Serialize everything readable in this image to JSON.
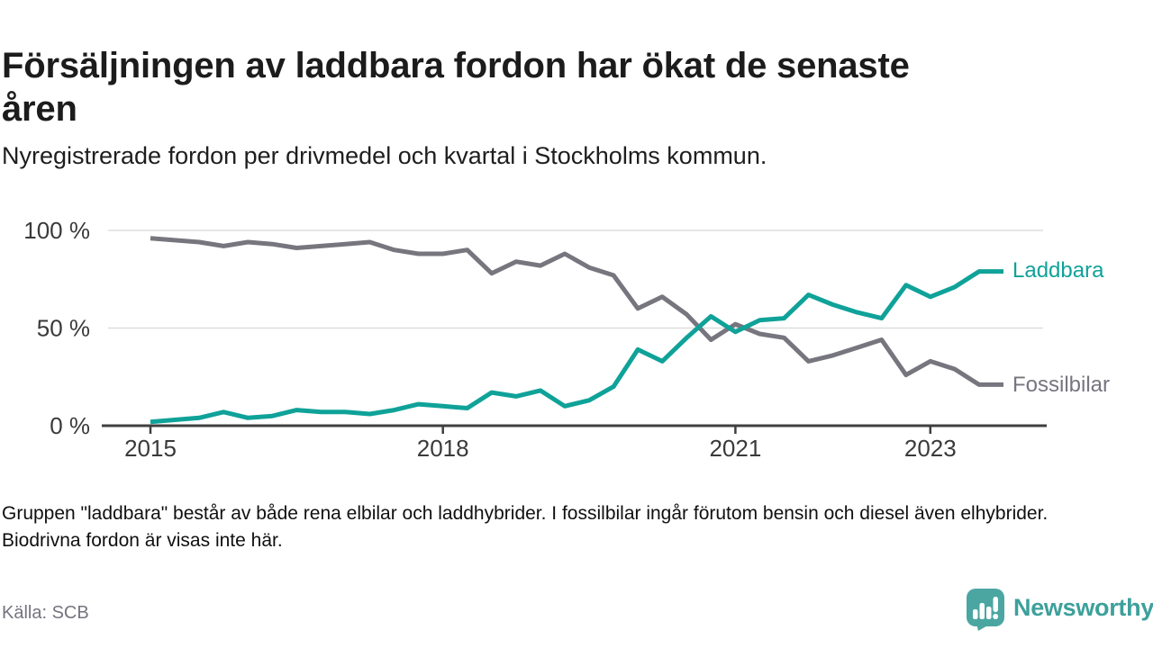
{
  "header": {
    "title": "Försäljningen av laddbara fordon har ökat de senaste åren",
    "subtitle": "Nyregistrerade fordon per drivmedel och kvartal i Stockholms kommun."
  },
  "chart_data": {
    "type": "line",
    "x_unit": "quarter",
    "x": [
      "2015 Q1",
      "2015 Q2",
      "2015 Q3",
      "2015 Q4",
      "2016 Q1",
      "2016 Q2",
      "2016 Q3",
      "2016 Q4",
      "2017 Q1",
      "2017 Q2",
      "2017 Q3",
      "2017 Q4",
      "2018 Q1",
      "2018 Q2",
      "2018 Q3",
      "2018 Q4",
      "2019 Q1",
      "2019 Q2",
      "2019 Q3",
      "2019 Q4",
      "2020 Q1",
      "2020 Q2",
      "2020 Q3",
      "2020 Q4",
      "2021 Q1",
      "2021 Q2",
      "2021 Q3",
      "2021 Q4",
      "2022 Q1",
      "2022 Q2",
      "2022 Q3",
      "2022 Q4",
      "2023 Q1",
      "2023 Q2",
      "2023 Q3",
      "2023 Q4"
    ],
    "series": [
      {
        "name": "Laddbara",
        "color": "#0fa299",
        "values": [
          2,
          3,
          4,
          7,
          4,
          5,
          8,
          7,
          7,
          6,
          8,
          11,
          10,
          9,
          17,
          15,
          18,
          10,
          13,
          20,
          39,
          33,
          45,
          56,
          48,
          54,
          55,
          67,
          62,
          58,
          55,
          72,
          66,
          71,
          79,
          79
        ]
      },
      {
        "name": "Fossilbilar",
        "color": "#77757e",
        "values": [
          96,
          95,
          94,
          92,
          94,
          93,
          91,
          92,
          93,
          94,
          90,
          88,
          88,
          90,
          78,
          84,
          82,
          88,
          81,
          77,
          60,
          66,
          57,
          44,
          52,
          47,
          45,
          33,
          36,
          40,
          44,
          26,
          33,
          29,
          21,
          21
        ]
      }
    ],
    "ylim": [
      0,
      100
    ],
    "yticks": [
      {
        "value": 0,
        "label": "0 %"
      },
      {
        "value": 50,
        "label": "50 %"
      },
      {
        "value": 100,
        "label": "100 %"
      }
    ],
    "xticks": [
      {
        "index": 0,
        "label": "2015"
      },
      {
        "index": 12,
        "label": "2018"
      },
      {
        "index": 24,
        "label": "2021"
      },
      {
        "index": 32,
        "label": "2023"
      }
    ],
    "grid": "horizontal",
    "legend_position": "right-of-line-ends",
    "xlabel": "",
    "ylabel": ""
  },
  "footnote": "Gruppen \"laddbara\" består av både rena elbilar och laddhybrider. I fossilbilar ingår förutom bensin och diesel även elhybrider. Biodrivna fordon är visas inte här.",
  "source": "Källa: SCB",
  "branding": {
    "logo_text": "Newsworthy",
    "logo_icon": "bar-chart-speech-bubble-icon",
    "logo_color": "#4ba6a2",
    "logo_text_color": "#3da09b"
  }
}
